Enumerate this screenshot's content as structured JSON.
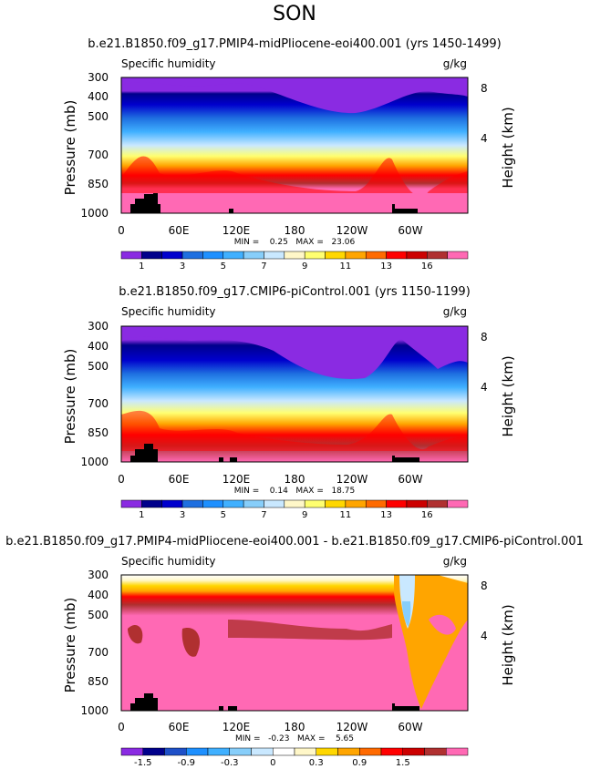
{
  "season": "SON",
  "chart_data": [
    {
      "type": "heatmap",
      "title": "b.e21.B1850.f09_g17.PMIP4-midPliocene-eoi400.001 (yrs 1450-1499)",
      "variable": "Specific humidity",
      "units": "g/kg",
      "ylabel": "Pressure (mb)",
      "ylabel_right": "Height (km)",
      "x_ticks": [
        "0",
        "60E",
        "120E",
        "180",
        "120W",
        "60W"
      ],
      "y_ticks": [
        "300",
        "400",
        "500",
        "700",
        "850",
        "1000"
      ],
      "right_ticks": [
        "8",
        "4"
      ],
      "stats": "MIN =    0.25   MAX =   23.06",
      "colorbar_labels": [
        "1",
        "3",
        "5",
        "7",
        "9",
        "11",
        "13",
        "16"
      ],
      "colors": [
        "#8a2be2",
        "#00008b",
        "#0000cd",
        "#1e6fe0",
        "#1e90ff",
        "#40b0ff",
        "#87cefa",
        "#c9e8ff",
        "#fff7c8",
        "#ffff70",
        "#ffd700",
        "#ffa500",
        "#ff6a00",
        "#ff0000",
        "#cc0000",
        "#b03030",
        "#ff69b4"
      ]
    },
    {
      "type": "heatmap",
      "title": "b.e21.B1850.f09_g17.CMIP6-piControl.001 (yrs 1150-1199)",
      "variable": "Specific humidity",
      "units": "g/kg",
      "ylabel": "Pressure (mb)",
      "ylabel_right": "Height (km)",
      "x_ticks": [
        "0",
        "60E",
        "120E",
        "180",
        "120W",
        "60W"
      ],
      "y_ticks": [
        "300",
        "400",
        "500",
        "700",
        "850",
        "1000"
      ],
      "right_ticks": [
        "8",
        "4"
      ],
      "stats": "MIN =    0.14   MAX =   18.75",
      "colorbar_labels": [
        "1",
        "3",
        "5",
        "7",
        "9",
        "11",
        "13",
        "16"
      ],
      "colors": [
        "#8a2be2",
        "#00008b",
        "#0000cd",
        "#1e6fe0",
        "#1e90ff",
        "#40b0ff",
        "#87cefa",
        "#c9e8ff",
        "#fff7c8",
        "#ffff70",
        "#ffd700",
        "#ffa500",
        "#ff6a00",
        "#ff0000",
        "#cc0000",
        "#b03030",
        "#ff69b4"
      ]
    },
    {
      "type": "heatmap",
      "title": "b.e21.B1850.f09_g17.PMIP4-midPliocene-eoi400.001 - b.e21.B1850.f09_g17.CMIP6-piControl.001",
      "variable": "Specific humidity",
      "units": "g/kg",
      "ylabel": "Pressure (mb)",
      "ylabel_right": "Height (km)",
      "x_ticks": [
        "0",
        "60E",
        "120E",
        "180",
        "120W",
        "60W"
      ],
      "y_ticks": [
        "300",
        "400",
        "500",
        "700",
        "850",
        "1000"
      ],
      "right_ticks": [
        "8",
        "4"
      ],
      "stats": "MIN =   -0.23   MAX =    5.65",
      "colorbar_labels": [
        "-1.5",
        "-0.9",
        "-0.3",
        "0",
        "0.3",
        "0.9",
        "1.5"
      ],
      "colors": [
        "#8a2be2",
        "#00008b",
        "#1e50c8",
        "#1e90ff",
        "#40b0ff",
        "#87cefa",
        "#c9e8ff",
        "#ffffff",
        "#fff7c8",
        "#ffd700",
        "#ffa500",
        "#ff6a00",
        "#ff0000",
        "#cc0000",
        "#b03030",
        "#ff69b4"
      ]
    }
  ]
}
